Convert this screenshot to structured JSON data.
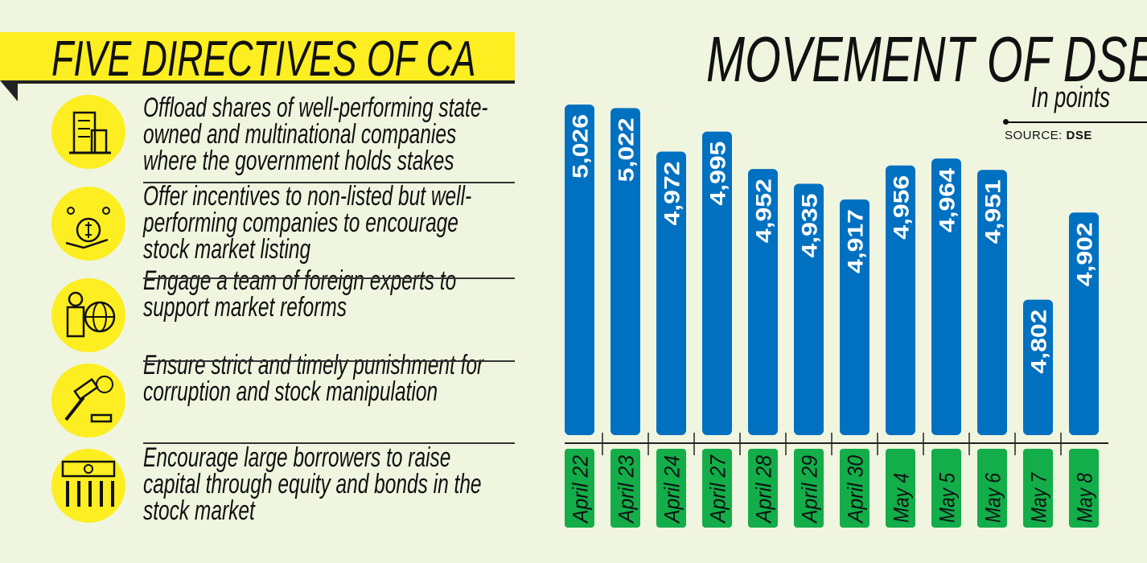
{
  "left": {
    "title": "FIVE DIRECTIVES OF CA",
    "items": [
      {
        "icon": "building-icon",
        "lines": [
          "Offload shares of well-performing state-",
          "owned and multinational companies",
          "where the government holds stakes"
        ]
      },
      {
        "icon": "money-bag-stars-icon",
        "lines": [
          "Offer incentives to non-listed but well-",
          "performing companies to encourage",
          "stock market listing"
        ]
      },
      {
        "icon": "expert-globe-icon",
        "lines": [
          "Engage a team of foreign experts to",
          "support market reforms"
        ]
      },
      {
        "icon": "gavel-icon",
        "lines": [
          "Ensure strict and timely punishment for",
          "corruption and stock manipulation"
        ]
      },
      {
        "icon": "borrowers-money-icon",
        "lines": [
          "Encourage large borrowers to raise",
          "capital through equity and bonds in the",
          "stock market"
        ]
      }
    ]
  },
  "chart_data": {
    "type": "bar",
    "title": "MOVEMENT OF DSEX",
    "unit": "In points",
    "source_label": "SOURCE:",
    "source": "DSE",
    "categories": [
      "April 22",
      "April 23",
      "April 24",
      "April 27",
      "April 28",
      "April 29",
      "April 30",
      "May 4",
      "May 5",
      "May 6",
      "May 7",
      "May 8"
    ],
    "values": [
      5026,
      5022,
      4972,
      4995,
      4952,
      4935,
      4917,
      4956,
      4964,
      4951,
      4802,
      4902
    ],
    "labels": [
      "5,026",
      "5,022",
      "4,972",
      "4,995",
      "4,952",
      "4,935",
      "4,917",
      "4,956",
      "4,964",
      "4,951",
      "4,802",
      "4,902"
    ],
    "ylim": [
      4652,
      5026
    ],
    "bar_color": "#0070c0",
    "label_color": "#13ad4a",
    "grid": false
  },
  "colors": {
    "banner": "#fcee21",
    "background": "#f0f5e0"
  }
}
